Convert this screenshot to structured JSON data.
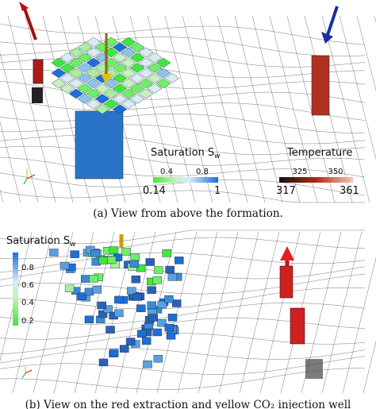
{
  "panel_a": {
    "caption": "(a) View from above the formation.",
    "saturation_legend": {
      "title": "Saturation S",
      "subscript": "w",
      "ticks_top": [
        "0.4",
        "0.8"
      ],
      "min": "0.14",
      "max": "1"
    },
    "temperature_legend": {
      "title": "Temperature",
      "ticks_top": [
        "325",
        "350"
      ],
      "min": "317",
      "max": "361"
    }
  },
  "panel_b": {
    "caption": "(b) View on the red extraction and yellow CO₂ injection well",
    "saturation_legend": {
      "title": "Saturation S",
      "subscript": "w",
      "ticks": [
        "0.8",
        "0.6",
        "0.4",
        "0.2"
      ]
    }
  }
}
